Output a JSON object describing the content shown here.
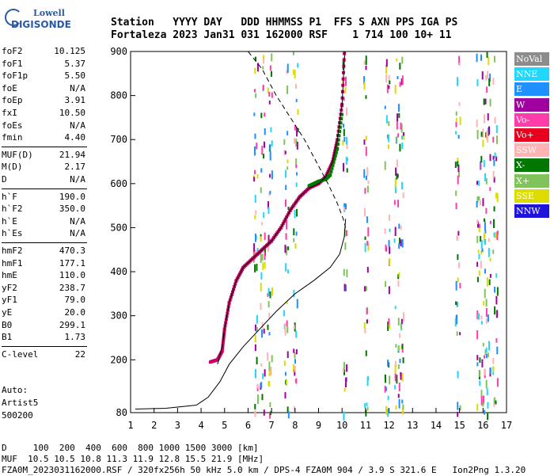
{
  "logo": {
    "line1": "Lowell",
    "line2": "DIGISONDE"
  },
  "header": {
    "labels": "Station   YYYY DAY   DDD HHMMSS P1  FFS S AXN PPS IGA PS",
    "values": "Fortaleza 2023 Jan31 031 162000 RSF    1 714 100 10+ 11"
  },
  "params": [
    {
      "k": "foF2",
      "v": "10.125"
    },
    {
      "k": "foF1",
      "v": "5.37"
    },
    {
      "k": "foF1p",
      "v": "5.50"
    },
    {
      "k": "foE",
      "v": "N/A"
    },
    {
      "k": "foEp",
      "v": "3.91"
    },
    {
      "k": "fxI",
      "v": "10.50"
    },
    {
      "k": "foEs",
      "v": "N/A"
    },
    {
      "k": "fmin",
      "v": "4.40"
    },
    {
      "k": "MUF(D)",
      "v": "21.94"
    },
    {
      "k": "M(D)",
      "v": "2.17"
    },
    {
      "k": "D",
      "v": "N/A"
    },
    {
      "k": "h`F",
      "v": "190.0"
    },
    {
      "k": "h`F2",
      "v": "350.0"
    },
    {
      "k": "h`E",
      "v": "N/A"
    },
    {
      "k": "h`Es",
      "v": "N/A"
    },
    {
      "k": "hmF2",
      "v": "470.3"
    },
    {
      "k": "hmF1",
      "v": "177.1"
    },
    {
      "k": "hmE",
      "v": "110.0"
    },
    {
      "k": "yF2",
      "v": "238.7"
    },
    {
      "k": "yF1",
      "v": "79.0"
    },
    {
      "k": "yE",
      "v": "20.0"
    },
    {
      "k": "B0",
      "v": "299.1"
    },
    {
      "k": "B1",
      "v": "1.73"
    },
    {
      "k": "C-level",
      "v": "22"
    }
  ],
  "auto": {
    "l1": "Auto:",
    "l2": "Artist5",
    "l3": "500200"
  },
  "legend": [
    {
      "label": "NoVal",
      "color": "#8c8c8c"
    },
    {
      "label": "NNE",
      "color": "#22d7ff"
    },
    {
      "label": "E",
      "color": "#1e90ff"
    },
    {
      "label": "W",
      "color": "#a0009f"
    },
    {
      "label": "Vo-",
      "color": "#ff3caa"
    },
    {
      "label": "Vo+",
      "color": "#e8001e"
    },
    {
      "label": "SSW",
      "color": "#ffb4b4"
    },
    {
      "label": "X-",
      "color": "#007800"
    },
    {
      "label": "X+",
      "color": "#7fc35a"
    },
    {
      "label": "SSE",
      "color": "#dcdc00"
    },
    {
      "label": "NNW",
      "color": "#1e14dc"
    }
  ],
  "footer": {
    "line1": "D     100  200  400  600  800 1000 1500 3000 [km]",
    "line2": "MUF  10.5 10.5 10.8 11.3 11.9 12.8 15.5 21.9 [MHz]",
    "line3": "FZA0M_2023031162000.RSF / 320fx256h 50 kHz 5.0 km / DPS-4 FZA0M 904 / 3.9 S 321.6 E   Ion2Png 1.3.20"
  },
  "chart_data": {
    "type": "scatter",
    "xlim": [
      1,
      17
    ],
    "ylim": [
      80,
      900
    ],
    "xticks": [
      1,
      2,
      3,
      4,
      5,
      6,
      7,
      8,
      9,
      10,
      11,
      12,
      13,
      14,
      15,
      16,
      17
    ],
    "yticks": [
      80,
      200,
      300,
      400,
      500,
      600,
      700,
      800,
      900
    ],
    "xlabel": "",
    "ylabel": "",
    "series": [
      {
        "kind": "trace",
        "color": "#cc0066",
        "x": [
          4.4,
          4.7,
          4.9,
          5.0,
          5.2,
          5.5,
          5.8,
          6.2,
          6.6,
          7.0,
          7.4,
          7.8,
          8.2,
          8.6,
          9.0,
          9.3,
          9.6,
          9.8,
          10.0,
          10.1
        ],
        "y": [
          195,
          200,
          220,
          270,
          330,
          380,
          410,
          430,
          450,
          470,
          500,
          540,
          570,
          590,
          600,
          615,
          650,
          700,
          780,
          900
        ]
      },
      {
        "kind": "trace",
        "color": "#007800",
        "x": [
          8.6,
          9.0,
          9.3,
          9.5,
          9.8,
          10.0
        ],
        "y": [
          595,
          605,
          610,
          620,
          680,
          760
        ]
      },
      {
        "kind": "line",
        "style": "solid",
        "color": "#000000",
        "x": [
          1.2,
          2.5,
          3.8,
          4.3,
          4.8,
          5.2,
          5.8,
          6.5,
          7.2,
          8.0,
          8.8,
          9.5,
          9.9,
          10.1,
          10.15
        ],
        "y": [
          88,
          90,
          97,
          115,
          150,
          190,
          230,
          270,
          310,
          350,
          380,
          410,
          440,
          480,
          520
        ]
      },
      {
        "kind": "line",
        "style": "solid",
        "color": "#000000",
        "x": [
          4.7,
          4.9,
          5.0,
          5.2,
          5.5,
          5.8,
          6.2,
          6.6,
          7.0,
          7.4,
          7.8,
          8.2,
          8.6,
          9.0,
          9.3,
          9.6,
          9.8,
          10.0,
          10.12
        ],
        "y": [
          190,
          230,
          270,
          330,
          380,
          410,
          430,
          450,
          470,
          500,
          540,
          570,
          590,
          600,
          615,
          650,
          700,
          780,
          900
        ]
      },
      {
        "kind": "line",
        "style": "dashed",
        "color": "#000000",
        "x": [
          5.0,
          6.0,
          6.6,
          7.2,
          7.8,
          8.4,
          8.9,
          9.4,
          9.8,
          10.05,
          10.15
        ],
        "y": [
          900,
          900,
          860,
          800,
          750,
          700,
          650,
          600,
          555,
          520,
          500
        ]
      }
    ],
    "sparse_columns_x": [
      6.3,
      6.6,
      6.9,
      7.6,
      8.0,
      10.1,
      11.0,
      11.9,
      12.3,
      12.5,
      14.9,
      15.8,
      16.0,
      16.2,
      16.5
    ]
  }
}
